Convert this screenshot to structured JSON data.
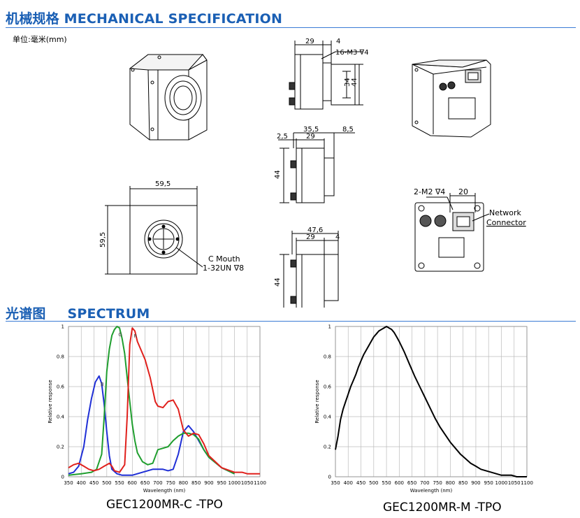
{
  "mech": {
    "title": "机械规格 MECHANICAL SPECIFICATION",
    "unit": "单位:毫米(mm)",
    "dims": {
      "side_top_w": "29",
      "side_top_r": "4",
      "thread_top": "16-M3 ∇4",
      "h34": "34",
      "h44a": "44",
      "side_mid_total": "35,5",
      "side_mid_w": "29",
      "side_mid_l": "2,5",
      "side_mid_r": "8,5",
      "h44b": "44",
      "side_bot_total": "47,6",
      "side_bot_w": "29",
      "side_bot_r": "4",
      "h44c": "44",
      "front_w": "59,5",
      "front_h": "59,5",
      "c_mouth_1": "C Mouth",
      "c_mouth_2": "1-32UN ∇8",
      "back_thread": "2-M2 ∇4",
      "back_20": "20",
      "net_1": "Network",
      "net_2": "Connector"
    }
  },
  "spec": {
    "title_cn": "光谱图",
    "title_en": "SPECTRUM",
    "caption_c": "GEC1200MR-C -TPO",
    "caption_m": "GEC1200MR-M -TPO"
  },
  "chart_data": [
    {
      "type": "line",
      "xlabel": "Wavelength (nm)",
      "ylabel": "Relative response",
      "xlim": [
        350,
        1100
      ],
      "ylim": [
        0,
        1
      ],
      "xticks": [
        350,
        400,
        450,
        500,
        550,
        600,
        650,
        700,
        750,
        800,
        850,
        900,
        950,
        1000,
        1050,
        1100
      ],
      "yticks": [
        0,
        0.2,
        0.4,
        0.6,
        0.8,
        1
      ],
      "grid": true,
      "series": [
        {
          "name": "B",
          "color": "#1f2fd6",
          "x": [
            350,
            370,
            390,
            410,
            425,
            440,
            455,
            470,
            480,
            490,
            500,
            510,
            520,
            540,
            560,
            580,
            600,
            620,
            640,
            660,
            680,
            700,
            720,
            740,
            760,
            780,
            800,
            820,
            840,
            860,
            880,
            900,
            950,
            1000
          ],
          "y": [
            0.02,
            0.03,
            0.07,
            0.2,
            0.38,
            0.52,
            0.63,
            0.67,
            0.62,
            0.48,
            0.3,
            0.14,
            0.05,
            0.02,
            0.01,
            0.01,
            0.01,
            0.02,
            0.03,
            0.04,
            0.05,
            0.05,
            0.05,
            0.04,
            0.05,
            0.15,
            0.3,
            0.34,
            0.3,
            0.24,
            0.18,
            0.13,
            0.06,
            0.02
          ]
        },
        {
          "name": "G",
          "color": "#1f9e2e",
          "x": [
            350,
            400,
            440,
            460,
            480,
            490,
            500,
            510,
            520,
            530,
            540,
            550,
            560,
            570,
            580,
            590,
            600,
            610,
            620,
            640,
            660,
            680,
            700,
            720,
            740,
            760,
            780,
            800,
            820,
            840,
            860,
            880,
            900,
            950,
            1000
          ],
          "y": [
            0.01,
            0.02,
            0.03,
            0.05,
            0.15,
            0.4,
            0.7,
            0.85,
            0.94,
            0.98,
            1.0,
            0.99,
            0.92,
            0.82,
            0.66,
            0.5,
            0.35,
            0.24,
            0.16,
            0.1,
            0.08,
            0.09,
            0.18,
            0.19,
            0.2,
            0.24,
            0.27,
            0.29,
            0.29,
            0.28,
            0.25,
            0.18,
            0.13,
            0.06,
            0.02
          ]
        },
        {
          "name": "R",
          "color": "#e0201c",
          "x": [
            350,
            370,
            390,
            410,
            430,
            450,
            470,
            490,
            510,
            520,
            530,
            550,
            570,
            580,
            590,
            600,
            610,
            620,
            630,
            650,
            670,
            690,
            700,
            720,
            740,
            760,
            780,
            800,
            820,
            840,
            860,
            880,
            900,
            950,
            1000,
            1030,
            1050,
            1080,
            1100
          ],
          "y": [
            0.06,
            0.08,
            0.09,
            0.07,
            0.05,
            0.04,
            0.05,
            0.07,
            0.09,
            0.07,
            0.04,
            0.03,
            0.08,
            0.4,
            0.88,
            0.99,
            0.97,
            0.9,
            0.86,
            0.78,
            0.66,
            0.5,
            0.47,
            0.46,
            0.5,
            0.51,
            0.45,
            0.31,
            0.27,
            0.29,
            0.28,
            0.22,
            0.14,
            0.06,
            0.03,
            0.03,
            0.02,
            0.02,
            0.02
          ]
        }
      ]
    },
    {
      "type": "line",
      "xlabel": "Wavelength (nm)",
      "ylabel": "Relative response",
      "xlim": [
        350,
        1100
      ],
      "ylim": [
        0,
        1
      ],
      "xticks": [
        350,
        400,
        450,
        500,
        550,
        600,
        650,
        700,
        750,
        800,
        850,
        900,
        950,
        1000,
        1050,
        1100
      ],
      "yticks": [
        0,
        0.2,
        0.4,
        0.6,
        0.8,
        1
      ],
      "grid": true,
      "series": [
        {
          "color": "#000000",
          "x": [
            350,
            360,
            370,
            380,
            390,
            400,
            410,
            420,
            430,
            440,
            450,
            460,
            470,
            480,
            490,
            500,
            510,
            520,
            530,
            540,
            550,
            560,
            570,
            580,
            590,
            600,
            620,
            640,
            660,
            680,
            700,
            720,
            740,
            760,
            780,
            800,
            820,
            840,
            860,
            880,
            900,
            920,
            940,
            960,
            980,
            1000,
            1020,
            1040,
            1060,
            1080,
            1100
          ],
          "y": [
            0.18,
            0.27,
            0.38,
            0.45,
            0.5,
            0.55,
            0.6,
            0.64,
            0.68,
            0.73,
            0.77,
            0.81,
            0.84,
            0.87,
            0.9,
            0.93,
            0.95,
            0.97,
            0.98,
            0.99,
            1.0,
            0.99,
            0.98,
            0.96,
            0.93,
            0.9,
            0.83,
            0.75,
            0.67,
            0.6,
            0.53,
            0.46,
            0.39,
            0.33,
            0.28,
            0.23,
            0.19,
            0.15,
            0.12,
            0.09,
            0.07,
            0.05,
            0.04,
            0.03,
            0.02,
            0.01,
            0.01,
            0.01,
            0.0,
            0.0,
            0.0
          ]
        }
      ]
    }
  ]
}
